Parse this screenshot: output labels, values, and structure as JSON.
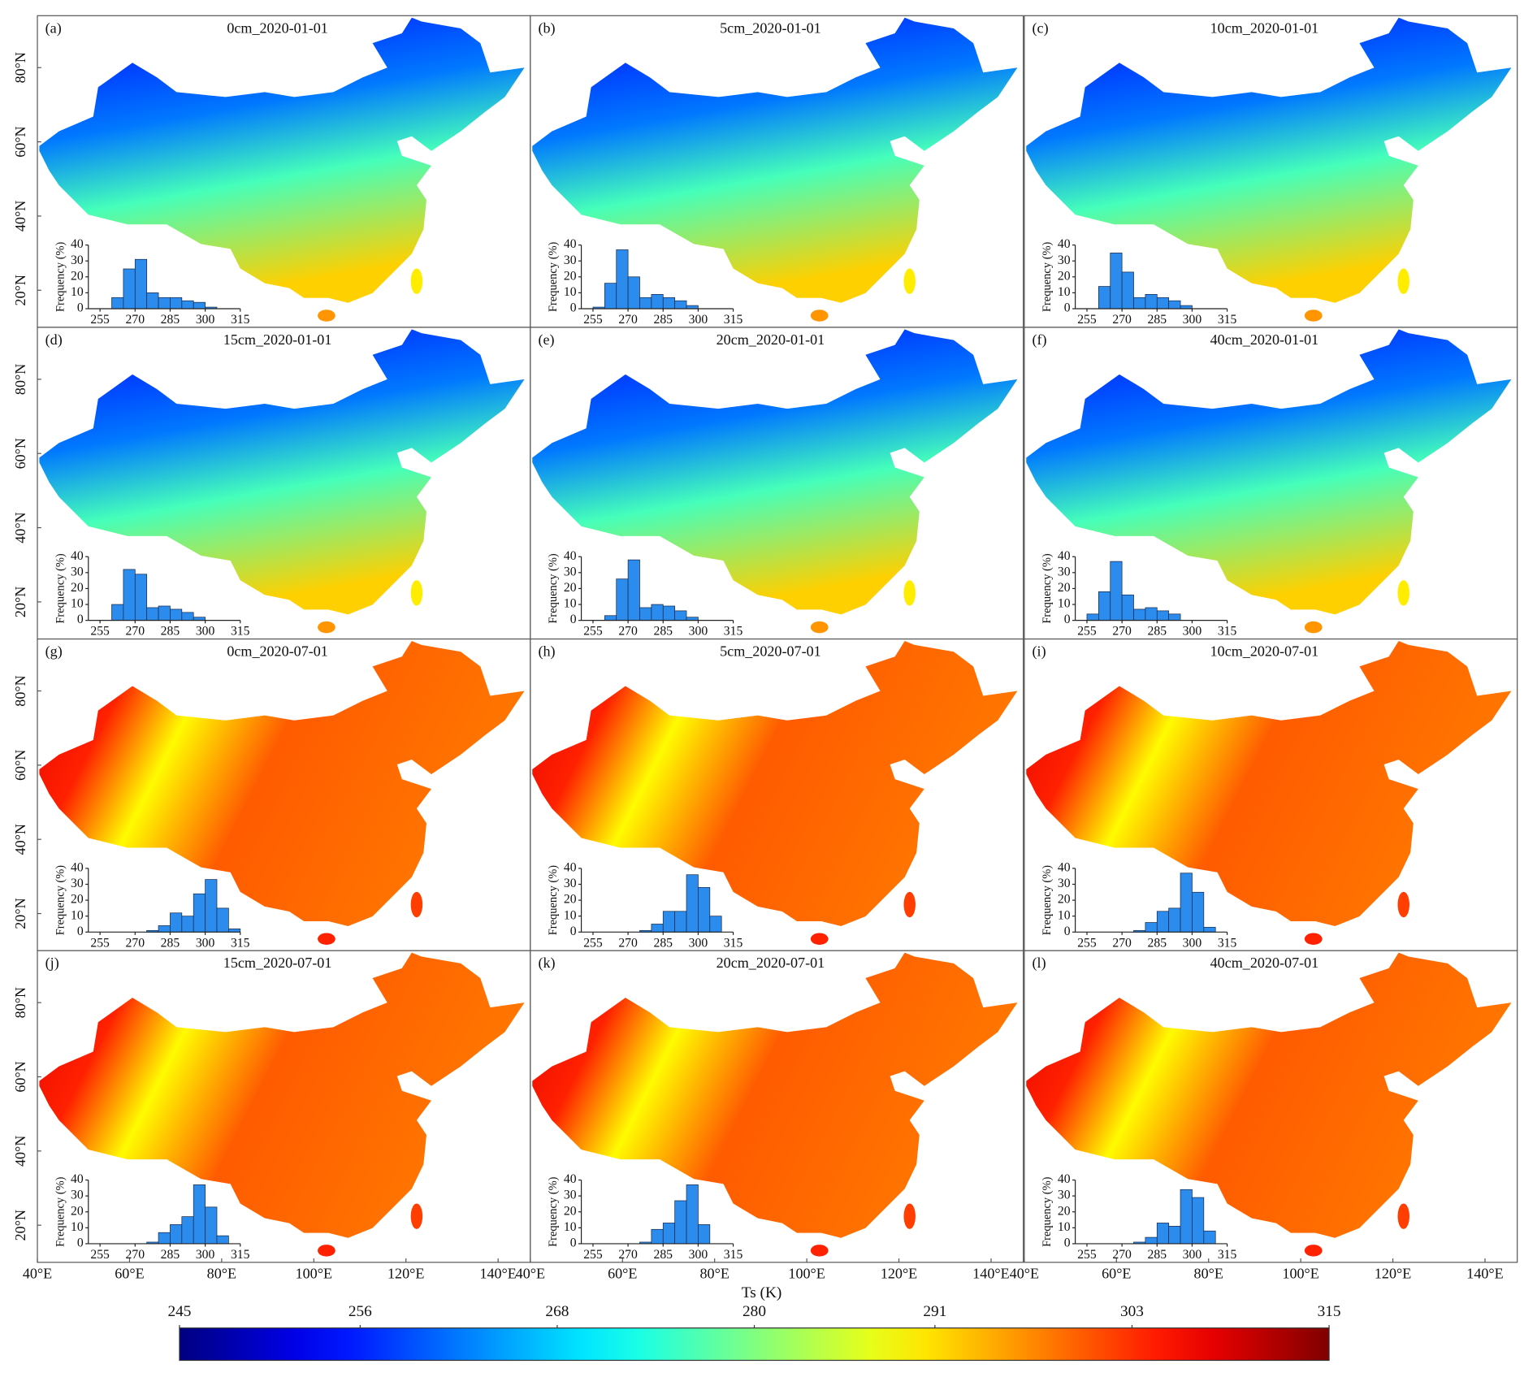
{
  "chart_data": [
    {
      "type": "histogram",
      "panel_label": "(a)",
      "title": "0cm_2020-01-01",
      "bins": [
        250,
        255,
        260,
        265,
        270,
        275,
        280,
        285,
        290,
        295,
        300,
        305,
        310,
        315
      ],
      "values": [
        0,
        0,
        7,
        25,
        31,
        10,
        7,
        7,
        5,
        4,
        1,
        0,
        0
      ],
      "color": "#2b8cee",
      "xlim": [
        250,
        315
      ],
      "ylim": [
        0,
        40
      ],
      "xticks": [
        255,
        270,
        285,
        300,
        315
      ],
      "yticks": [
        0,
        10,
        20,
        30,
        40
      ],
      "ylabel": "Frequency (%)"
    },
    {
      "type": "histogram",
      "panel_label": "(b)",
      "title": "5cm_2020-01-01",
      "bins": [
        250,
        255,
        260,
        265,
        270,
        275,
        280,
        285,
        290,
        295,
        300,
        305,
        310,
        315
      ],
      "values": [
        0,
        1,
        16,
        37,
        20,
        7,
        9,
        7,
        5,
        2,
        0,
        0,
        0
      ],
      "color": "#2b8cee",
      "xlim": [
        250,
        315
      ],
      "ylim": [
        0,
        40
      ],
      "xticks": [
        255,
        270,
        285,
        300,
        315
      ],
      "yticks": [
        0,
        10,
        20,
        30,
        40
      ],
      "ylabel": "Frequency (%)"
    },
    {
      "type": "histogram",
      "panel_label": "(c)",
      "title": "10cm_2020-01-01",
      "bins": [
        250,
        255,
        260,
        265,
        270,
        275,
        280,
        285,
        290,
        295,
        300,
        305,
        310,
        315
      ],
      "values": [
        0,
        0,
        14,
        35,
        23,
        7,
        9,
        7,
        5,
        2,
        0,
        0,
        0
      ],
      "color": "#2b8cee",
      "xlim": [
        250,
        315
      ],
      "ylim": [
        0,
        40
      ],
      "xticks": [
        255,
        270,
        285,
        300,
        315
      ],
      "yticks": [
        0,
        10,
        20,
        30,
        40
      ],
      "ylabel": "Frequency (%)"
    },
    {
      "type": "histogram",
      "panel_label": "(d)",
      "title": "15cm_2020-01-01",
      "bins": [
        250,
        255,
        260,
        265,
        270,
        275,
        280,
        285,
        290,
        295,
        300,
        305,
        310,
        315
      ],
      "values": [
        0,
        0,
        10,
        32,
        29,
        8,
        9,
        7,
        5,
        2,
        0,
        0,
        0
      ],
      "color": "#2b8cee",
      "xlim": [
        250,
        315
      ],
      "ylim": [
        0,
        40
      ],
      "xticks": [
        255,
        270,
        285,
        300,
        315
      ],
      "yticks": [
        0,
        10,
        20,
        30,
        40
      ],
      "ylabel": "Frequency (%)"
    },
    {
      "type": "histogram",
      "panel_label": "(e)",
      "title": "20cm_2020-01-01",
      "bins": [
        250,
        255,
        260,
        265,
        270,
        275,
        280,
        285,
        290,
        295,
        300,
        305,
        310,
        315
      ],
      "values": [
        0,
        0,
        3,
        26,
        38,
        8,
        10,
        9,
        6,
        2,
        0,
        0,
        0
      ],
      "color": "#2b8cee",
      "xlim": [
        250,
        315
      ],
      "ylim": [
        0,
        40
      ],
      "xticks": [
        255,
        270,
        285,
        300,
        315
      ],
      "yticks": [
        0,
        10,
        20,
        30,
        40
      ],
      "ylabel": "Frequency (%)"
    },
    {
      "type": "histogram",
      "panel_label": "(f)",
      "title": "40cm_2020-01-01",
      "bins": [
        250,
        255,
        260,
        265,
        270,
        275,
        280,
        285,
        290,
        295,
        300,
        305,
        310,
        315
      ],
      "values": [
        0,
        4,
        18,
        37,
        16,
        7,
        8,
        6,
        4,
        0,
        0,
        0,
        0
      ],
      "color": "#2b8cee",
      "xlim": [
        250,
        315
      ],
      "ylim": [
        0,
        40
      ],
      "xticks": [
        255,
        270,
        285,
        300,
        315
      ],
      "yticks": [
        0,
        10,
        20,
        30,
        40
      ],
      "ylabel": "Frequency (%)"
    },
    {
      "type": "histogram",
      "panel_label": "(g)",
      "title": "0cm_2020-07-01",
      "bins": [
        250,
        255,
        260,
        265,
        270,
        275,
        280,
        285,
        290,
        295,
        300,
        305,
        310,
        315
      ],
      "values": [
        0,
        0,
        0,
        0,
        0,
        1,
        4,
        12,
        10,
        24,
        33,
        15,
        2
      ],
      "color": "#2b8cee",
      "xlim": [
        250,
        315
      ],
      "ylim": [
        0,
        40
      ],
      "xticks": [
        255,
        270,
        285,
        300,
        315
      ],
      "yticks": [
        0,
        10,
        20,
        30,
        40
      ],
      "ylabel": "Frequency (%)"
    },
    {
      "type": "histogram",
      "panel_label": "(h)",
      "title": "5cm_2020-07-01",
      "bins": [
        250,
        255,
        260,
        265,
        270,
        275,
        280,
        285,
        290,
        295,
        300,
        305,
        310,
        315
      ],
      "values": [
        0,
        0,
        0,
        0,
        0,
        1,
        5,
        13,
        13,
        36,
        28,
        10,
        0
      ],
      "color": "#2b8cee",
      "xlim": [
        250,
        315
      ],
      "ylim": [
        0,
        40
      ],
      "xticks": [
        255,
        270,
        285,
        300,
        315
      ],
      "yticks": [
        0,
        10,
        20,
        30,
        40
      ],
      "ylabel": "Frequency (%)"
    },
    {
      "type": "histogram",
      "panel_label": "(i)",
      "title": "10cm_2020-07-01",
      "bins": [
        250,
        255,
        260,
        265,
        270,
        275,
        280,
        285,
        290,
        295,
        300,
        305,
        310,
        315
      ],
      "values": [
        0,
        0,
        0,
        0,
        0,
        1,
        6,
        13,
        15,
        37,
        25,
        3,
        0
      ],
      "color": "#2b8cee",
      "xlim": [
        250,
        315
      ],
      "ylim": [
        0,
        40
      ],
      "xticks": [
        255,
        270,
        285,
        300,
        315
      ],
      "yticks": [
        0,
        10,
        20,
        30,
        40
      ],
      "ylabel": "Frequency (%)"
    },
    {
      "type": "histogram",
      "panel_label": "(j)",
      "title": "15cm_2020-07-01",
      "bins": [
        250,
        255,
        260,
        265,
        270,
        275,
        280,
        285,
        290,
        295,
        300,
        305,
        310,
        315
      ],
      "values": [
        0,
        0,
        0,
        0,
        0,
        1,
        7,
        12,
        17,
        37,
        23,
        5,
        0
      ],
      "color": "#2b8cee",
      "xlim": [
        250,
        315
      ],
      "ylim": [
        0,
        40
      ],
      "xticks": [
        255,
        270,
        285,
        300,
        315
      ],
      "yticks": [
        0,
        10,
        20,
        30,
        40
      ],
      "ylabel": "Frequency (%)"
    },
    {
      "type": "histogram",
      "panel_label": "(k)",
      "title": "20cm_2020-07-01",
      "bins": [
        250,
        255,
        260,
        265,
        270,
        275,
        280,
        285,
        290,
        295,
        300,
        305,
        310,
        315
      ],
      "values": [
        0,
        0,
        0,
        0,
        0,
        1,
        9,
        13,
        27,
        37,
        12,
        0,
        0
      ],
      "color": "#2b8cee",
      "xlim": [
        250,
        315
      ],
      "ylim": [
        0,
        40
      ],
      "xticks": [
        255,
        270,
        285,
        300,
        315
      ],
      "yticks": [
        0,
        10,
        20,
        30,
        40
      ],
      "ylabel": "Frequency (%)"
    },
    {
      "type": "histogram",
      "panel_label": "(l)",
      "title": "40cm_2020-07-01",
      "bins": [
        250,
        255,
        260,
        265,
        270,
        275,
        280,
        285,
        290,
        295,
        300,
        305,
        310,
        315
      ],
      "values": [
        0,
        0,
        0,
        0,
        0,
        1,
        4,
        13,
        11,
        34,
        29,
        8,
        0
      ],
      "color": "#2b8cee",
      "xlim": [
        250,
        315
      ],
      "ylim": [
        0,
        40
      ],
      "xticks": [
        255,
        270,
        285,
        300,
        315
      ],
      "yticks": [
        0,
        10,
        20,
        30,
        40
      ],
      "ylabel": "Frequency (%)"
    }
  ],
  "map_axes": {
    "xlim": [
      40,
      147
    ],
    "ylim": [
      10,
      94
    ],
    "xticks": [
      {
        "value": 40,
        "label": "40°E"
      },
      {
        "value": 60,
        "label": "60°E"
      },
      {
        "value": 80,
        "label": "80°E"
      },
      {
        "value": 100,
        "label": "100°E"
      },
      {
        "value": 120,
        "label": "120°E"
      },
      {
        "value": 140,
        "label": "140°E"
      }
    ],
    "yticks": [
      {
        "value": 20,
        "label": "20°N"
      },
      {
        "value": 40,
        "label": "40°N"
      },
      {
        "value": 60,
        "label": "60°N"
      },
      {
        "value": 80,
        "label": "80°N"
      }
    ]
  },
  "colorbar": {
    "label": "Ts (K)",
    "lim": [
      245,
      315
    ],
    "ticks": [
      245,
      256,
      268,
      280,
      291,
      303,
      315
    ],
    "colormap": "jet"
  }
}
